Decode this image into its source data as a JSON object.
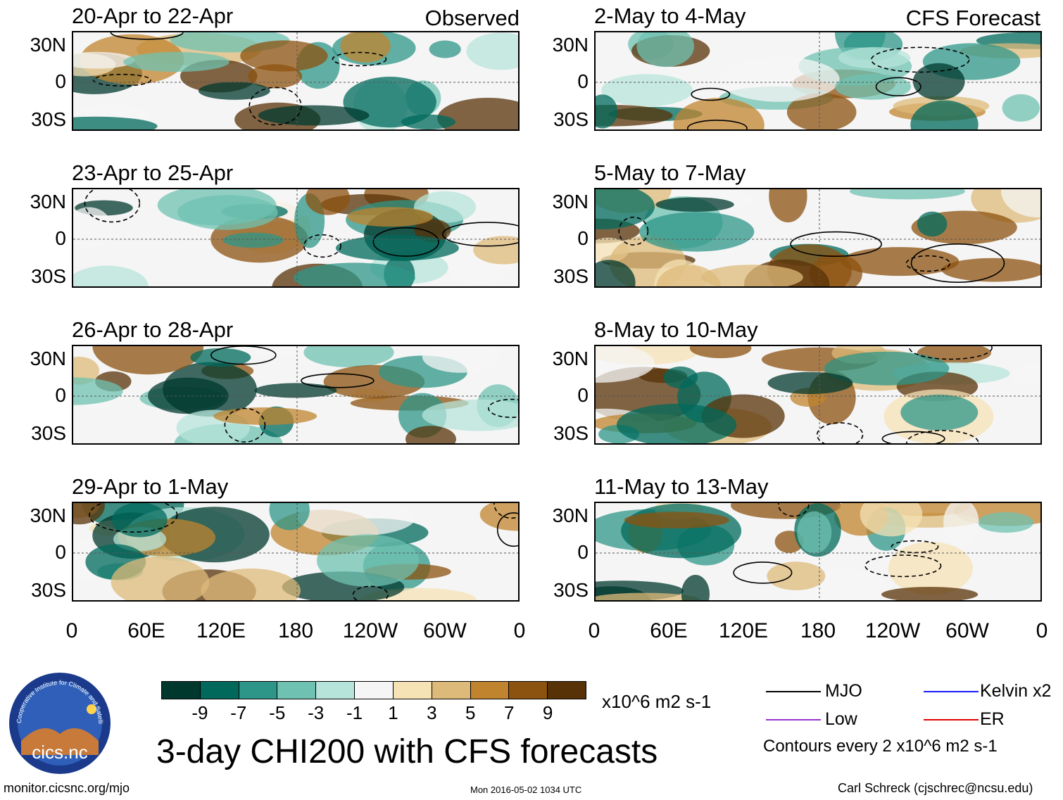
{
  "chart_data": {
    "type": "heatmap",
    "title": "3-day CHI200 with CFS forecasts",
    "units": "x10^6 m2 s-1",
    "x_tick_labels": [
      "0",
      "60E",
      "120E",
      "180",
      "120W",
      "60W",
      "0"
    ],
    "y_tick_labels": [
      "30N",
      "0",
      "30S"
    ],
    "observed_label": "Observed",
    "forecast_label": "CFS Forecast",
    "observed_panels": [
      "20-Apr to 22-Apr",
      "23-Apr to 25-Apr",
      "26-Apr to 28-Apr",
      "29-Apr to 1-May"
    ],
    "forecast_panels": [
      "2-May to 4-May",
      "5-May to 7-May",
      "8-May to 10-May",
      "11-May to 13-May"
    ],
    "colorbar": {
      "ticks": [
        "-9",
        "-7",
        "-5",
        "-3",
        "-1",
        "1",
        "3",
        "5",
        "7",
        "9"
      ],
      "colors": [
        "#00382e",
        "#00695c",
        "#2e9688",
        "#6fc2b1",
        "#b7e4da",
        "#f5f5f5",
        "#f5e2b5",
        "#deba7a",
        "#c0842f",
        "#8c520f",
        "#583207"
      ]
    },
    "legend": [
      {
        "label": "MJO",
        "color": "#000000"
      },
      {
        "label": "Kelvin x2",
        "color": "#1a1aff"
      },
      {
        "label": "Low",
        "color": "#9933cc"
      },
      {
        "label": "ER",
        "color": "#e00000"
      }
    ],
    "contour_note": "Contours every 2 x10^6 m2 s-1"
  },
  "footer": {
    "left": "monitor.cicsnc.org/mjo",
    "center": "Mon 2016-05-02 1034 UTC",
    "right": "Carl Schreck (cjschrec@ncsu.edu)"
  },
  "logo": {
    "text": "cics.nc",
    "ring_text": "Cooperative Institute for Climate and Satellites"
  }
}
